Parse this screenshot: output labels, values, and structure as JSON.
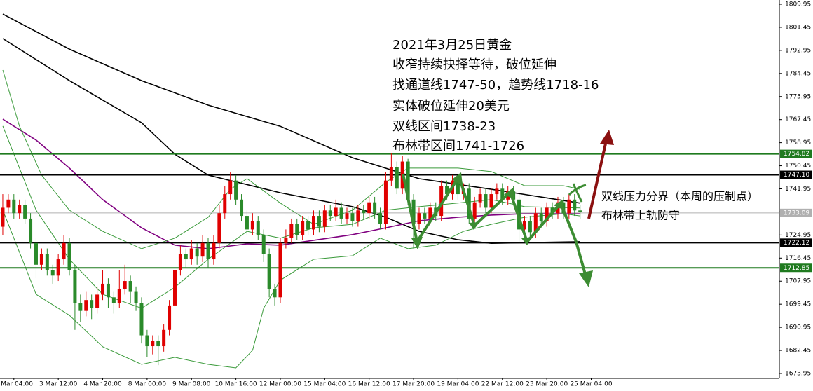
{
  "chart_data": {
    "type": "candlestick",
    "xlim": [
      -0.5,
      139.9
    ],
    "ylim": [
      1672.14,
      1811.5
    ],
    "up_color": "#e00000",
    "down_color": "#2a8a2a",
    "open": [
      1728,
      1735,
      1738,
      1733,
      1736,
      1731,
      1722,
      1714,
      1718,
      1712,
      1710,
      1716,
      1722,
      1712,
      1700,
      1697,
      1701,
      1698,
      1703,
      1707,
      1702,
      1700,
      1705,
      1708,
      1704,
      1700,
      1688,
      1684,
      1686,
      1684,
      1690,
      1699,
      1712,
      1718,
      1716,
      1720,
      1717,
      1722,
      1716,
      1722,
      1733,
      1740,
      1745,
      1738,
      1732,
      1727,
      1730,
      1725,
      1718,
      1705,
      1702,
      1722,
      1724,
      1729,
      1725,
      1730,
      1727,
      1732,
      1728,
      1734,
      1732,
      1735,
      1731,
      1733,
      1730,
      1734,
      1733,
      1737,
      1733,
      1729,
      1745,
      1750,
      1742,
      1752,
      1738,
      1729,
      1733,
      1731,
      1735,
      1732,
      1743,
      1740,
      1745,
      1740,
      1742,
      1731,
      1737,
      1740,
      1735,
      1740,
      1742,
      1738,
      1741,
      1738,
      1727,
      1730,
      1726,
      1733,
      1730,
      1735,
      1733,
      1737,
      1733,
      1738,
      1734
    ],
    "high": [
      1740,
      1740,
      1740,
      1738,
      1738,
      1733,
      1724,
      1720,
      1720,
      1714,
      1718,
      1725,
      1724,
      1714,
      1703,
      1704,
      1703,
      1706,
      1712,
      1709,
      1704,
      1712,
      1714,
      1710,
      1706,
      1702,
      1690,
      1688,
      1688,
      1692,
      1701,
      1714,
      1721,
      1720,
      1723,
      1722,
      1725,
      1724,
      1725,
      1736,
      1743,
      1748,
      1747,
      1740,
      1734,
      1733,
      1732,
      1727,
      1720,
      1707,
      1724,
      1727,
      1731,
      1731,
      1732,
      1732,
      1734,
      1734,
      1736,
      1736,
      1738,
      1737,
      1735,
      1735,
      1736,
      1736,
      1739,
      1739,
      1735,
      1748,
      1755,
      1752,
      1754,
      1753,
      1740,
      1735,
      1735,
      1737,
      1737,
      1745,
      1745,
      1747,
      1747,
      1744,
      1744,
      1739,
      1742,
      1742,
      1742,
      1744,
      1744,
      1743,
      1743,
      1740,
      1732,
      1732,
      1735,
      1735,
      1737,
      1737,
      1739,
      1739,
      1740,
      1740,
      1736
    ],
    "low": [
      1725,
      1733,
      1731,
      1731,
      1729,
      1720,
      1709,
      1712,
      1710,
      1707,
      1708,
      1714,
      1710,
      1690,
      1693,
      1695,
      1694,
      1696,
      1701,
      1698,
      1696,
      1698,
      1703,
      1700,
      1697,
      1685,
      1680,
      1681,
      1677,
      1682,
      1688,
      1697,
      1710,
      1713,
      1714,
      1714,
      1715,
      1713,
      1714,
      1720,
      1731,
      1738,
      1736,
      1730,
      1725,
      1725,
      1723,
      1715,
      1702,
      1699,
      1700,
      1720,
      1722,
      1723,
      1723,
      1725,
      1725,
      1726,
      1726,
      1730,
      1730,
      1729,
      1729,
      1728,
      1728,
      1731,
      1731,
      1731,
      1727,
      1727,
      1743,
      1740,
      1740,
      1736,
      1720,
      1727,
      1729,
      1729,
      1730,
      1730,
      1738,
      1738,
      1738,
      1738,
      1729,
      1729,
      1735,
      1733,
      1733,
      1738,
      1736,
      1736,
      1736,
      1722,
      1724,
      1723,
      1724,
      1728,
      1728,
      1731,
      1731,
      1731,
      1731,
      1732,
      1731
    ],
    "close": [
      1735,
      1738,
      1733,
      1736,
      1731,
      1722,
      1714,
      1718,
      1712,
      1710,
      1716,
      1722,
      1712,
      1700,
      1697,
      1701,
      1698,
      1703,
      1707,
      1702,
      1700,
      1705,
      1708,
      1704,
      1700,
      1688,
      1684,
      1686,
      1684,
      1690,
      1699,
      1712,
      1718,
      1716,
      1720,
      1717,
      1722,
      1716,
      1722,
      1733,
      1740,
      1745,
      1738,
      1732,
      1727,
      1730,
      1725,
      1718,
      1705,
      1702,
      1722,
      1724,
      1729,
      1725,
      1730,
      1727,
      1732,
      1728,
      1734,
      1732,
      1735,
      1731,
      1733,
      1730,
      1734,
      1733,
      1737,
      1733,
      1729,
      1745,
      1750,
      1742,
      1752,
      1738,
      1729,
      1733,
      1731,
      1735,
      1732,
      1743,
      1740,
      1745,
      1740,
      1742,
      1731,
      1737,
      1740,
      1735,
      1740,
      1742,
      1738,
      1741,
      1738,
      1727,
      1730,
      1726,
      1733,
      1730,
      1735,
      1733,
      1737,
      1733,
      1738,
      1734,
      1733.5
    ],
    "overlays": [
      {
        "color": "#000000",
        "x": [
          0,
          12,
          25,
          37,
          50,
          63,
          75,
          88,
          104
        ],
        "values": [
          1806.3,
          1793.4,
          1781.8,
          1772.8,
          1765,
          1753.4,
          1745.7,
          1741.8,
          1736.7
        ]
      },
      {
        "color": "#000000",
        "x": [
          0,
          12,
          25,
          31,
          37,
          50,
          63,
          69,
          75,
          82,
          88,
          104
        ],
        "values": [
          1797.3,
          1781.8,
          1766.3,
          1754.7,
          1747,
          1740.5,
          1735.4,
          1731.5,
          1726.3,
          1723.2,
          1721.9,
          1722.5
        ]
      },
      {
        "color": "#800080",
        "x": [
          0,
          6,
          12,
          18,
          25,
          31,
          37,
          44,
          50,
          56,
          63,
          69,
          75,
          82,
          88,
          94,
          104
        ],
        "values": [
          1767.6,
          1759.9,
          1749.6,
          1738,
          1727.6,
          1721.2,
          1719.9,
          1721.7,
          1721.2,
          1723,
          1725.1,
          1727.6,
          1730.2,
          1731.5,
          1732.3,
          1732.8,
          1732.8
        ]
      },
      {
        "color": "#3a9a3a",
        "x": [
          0,
          3,
          7,
          12,
          18,
          25,
          31,
          37,
          41,
          44,
          50,
          56,
          63,
          69,
          73,
          82,
          88,
          94,
          101,
          104
        ],
        "values": [
          1785.7,
          1765.1,
          1747,
          1734.1,
          1726.3,
          1719.9,
          1723.8,
          1731.5,
          1741.8,
          1745.7,
          1736.7,
          1728.9,
          1734.1,
          1744.4,
          1749.6,
          1749.6,
          1748.3,
          1743.1,
          1743.1,
          1741.8
        ]
      },
      {
        "color": "#3a9a3a",
        "x": [
          0,
          6,
          12,
          18,
          25,
          31,
          37,
          44,
          50,
          56,
          63,
          69,
          75,
          82,
          88,
          94,
          104
        ],
        "values": [
          1765.1,
          1734.1,
          1716,
          1703.1,
          1698,
          1705.7,
          1716,
          1726.3,
          1723.8,
          1727.6,
          1728.9,
          1734.1,
          1735.4,
          1736.7,
          1738,
          1735.4,
          1734.9
        ]
      },
      {
        "color": "#3a9a3a",
        "x": [
          0,
          6,
          12,
          18,
          25,
          31,
          37,
          42,
          45,
          47,
          50,
          56,
          63,
          68,
          73,
          78,
          83,
          88,
          94,
          101,
          104
        ],
        "values": [
          1734.1,
          1703.1,
          1695.4,
          1683.8,
          1677.3,
          1679.9,
          1677.3,
          1676,
          1682.5,
          1698,
          1708.3,
          1716,
          1717.3,
          1723.8,
          1719.9,
          1721.2,
          1726.3,
          1728.9,
          1731.5,
          1732.8,
          1732
        ]
      }
    ],
    "hlines": [
      {
        "value": 1754.82,
        "color": "#1f7a1f"
      },
      {
        "value": 1747.1,
        "label": "1747.10",
        "color": "#000000"
      },
      {
        "value": 1733.09,
        "color": "#b0b0b0"
      },
      {
        "value": 1722.12,
        "color": "#000000"
      },
      {
        "value": 1712.85,
        "color": "#1f7a1f"
      }
    ],
    "yticks": [
      1809.95,
      1801.45,
      1792.95,
      1784.45,
      1775.95,
      1767.45,
      1758.95,
      1750.45,
      1741.95,
      1733.45,
      1724.95,
      1716.45,
      1707.95,
      1699.45,
      1690.95,
      1682.45,
      1673.95
    ],
    "xticks": [
      {
        "value": 2,
        "label": "2 Mar 04:00"
      },
      {
        "value": 10,
        "label": "3 Mar 12:00"
      },
      {
        "value": 18,
        "label": "4 Mar 20:00"
      },
      {
        "value": 26,
        "label": "8 Mar 00:00"
      },
      {
        "value": 34,
        "label": "9 Mar 08:00"
      },
      {
        "value": 42,
        "label": "10 Mar 16:00"
      },
      {
        "value": 50,
        "label": "12 Mar 00:00"
      },
      {
        "value": 58,
        "label": "15 Mar 04:00"
      },
      {
        "value": 66,
        "label": "16 Mar 12:00"
      },
      {
        "value": 74,
        "label": "17 Mar 20:00"
      },
      {
        "value": 82,
        "label": "19 Mar 04:00"
      },
      {
        "value": 90,
        "label": "22 Mar 12:00"
      },
      {
        "value": 98,
        "label": "23 Mar 20:00"
      },
      {
        "value": 106,
        "label": "25 Mar 04:00"
      }
    ],
    "annotations": [
      "2021年3月25日黄金",
      "收窄持续抉择等待，破位延伸",
      "找通道线1747-50，趋势线1718-16",
      "实体破位延伸20美元",
      "双线区间1738-23",
      "布林带区间1741-1726",
      "双线压力分界（本周的压制点）",
      "布林带上轨防守"
    ]
  }
}
